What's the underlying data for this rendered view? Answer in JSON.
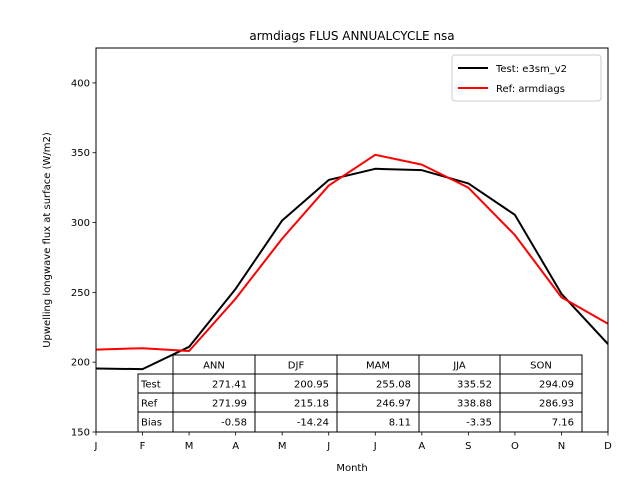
{
  "chart_data": {
    "type": "line",
    "title": "armdiags FLUS ANNUALCYCLE nsa",
    "xlabel": "Month",
    "ylabel": "Upwelling longwave flux at surface (W/m2)",
    "categories": [
      "J",
      "F",
      "M",
      "A",
      "M",
      "J",
      "J",
      "A",
      "S",
      "O",
      "N",
      "D"
    ],
    "ylim": [
      150,
      425
    ],
    "yticks": [
      150,
      200,
      250,
      300,
      350,
      400
    ],
    "grid": false,
    "legend_position": "top-right",
    "series": [
      {
        "name": "Test: e3sm_v2",
        "color": "#000000",
        "values": [
          195.5,
          195.0,
          211.0,
          252.5,
          301.5,
          330.5,
          338.5,
          337.5,
          328.0,
          305.5,
          249.0,
          213.0
        ]
      },
      {
        "name": "Ref: armdiags",
        "color": "#ff0000",
        "values": [
          209.0,
          210.0,
          208.0,
          245.5,
          288.5,
          326.5,
          348.5,
          341.5,
          325.0,
          291.0,
          246.5,
          227.5
        ]
      }
    ],
    "table": {
      "columns": [
        "ANN",
        "DJF",
        "MAM",
        "JJA",
        "SON"
      ],
      "rows": [
        {
          "label": "Test",
          "values": [
            "271.41",
            "200.95",
            "255.08",
            "335.52",
            "294.09"
          ]
        },
        {
          "label": "Ref",
          "values": [
            "271.99",
            "215.18",
            "246.97",
            "338.88",
            "286.93"
          ]
        },
        {
          "label": "Bias",
          "values": [
            "-0.58",
            "-14.24",
            "8.11",
            "-3.35",
            "7.16"
          ]
        }
      ]
    }
  }
}
